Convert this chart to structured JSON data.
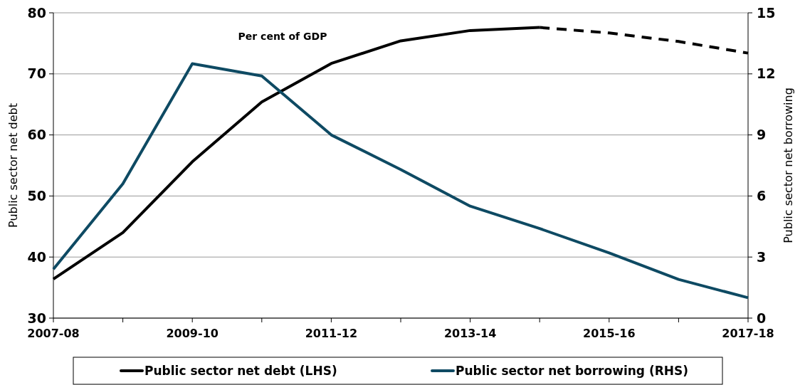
{
  "chart_data": {
    "type": "line",
    "annotations": [
      "Per cent of GDP"
    ],
    "ylabel": "Public sector net debt",
    "y2label": "Public sector net borrowing",
    "categories": [
      "2007-08",
      null,
      "2009-10",
      null,
      "2011-12",
      null,
      "2013-14",
      null,
      "2015-16",
      null,
      "2017-18"
    ],
    "series": [
      {
        "name": "Public sector net debt (LHS)",
        "color": "#000000",
        "values": [
          36.4,
          44.0,
          55.6,
          65.4,
          71.7,
          75.4,
          77.1,
          77.6,
          null,
          null,
          null
        ]
      },
      {
        "color": "#000000",
        "line_style": "dashed",
        "values": [
          null,
          null,
          null,
          null,
          null,
          null,
          null,
          77.6,
          76.7,
          75.3,
          73.4
        ]
      },
      {
        "name": "Public sector net borrowing (RHS)",
        "color": "#0e4a63",
        "axis": "y2",
        "values": [
          2.4,
          6.6,
          12.5,
          11.9,
          9.0,
          7.3,
          5.5,
          4.4,
          3.2,
          1.9,
          1.0
        ]
      }
    ],
    "ylim": [
      30,
      80
    ],
    "yticks": [
      30,
      40,
      50,
      60,
      70,
      80
    ],
    "y2lim": [
      0,
      15
    ],
    "y2ticks": [
      0,
      3,
      6,
      9,
      12,
      15
    ],
    "grid": "y",
    "legend": "bottom",
    "marker": "none",
    "line_style": "solid"
  }
}
